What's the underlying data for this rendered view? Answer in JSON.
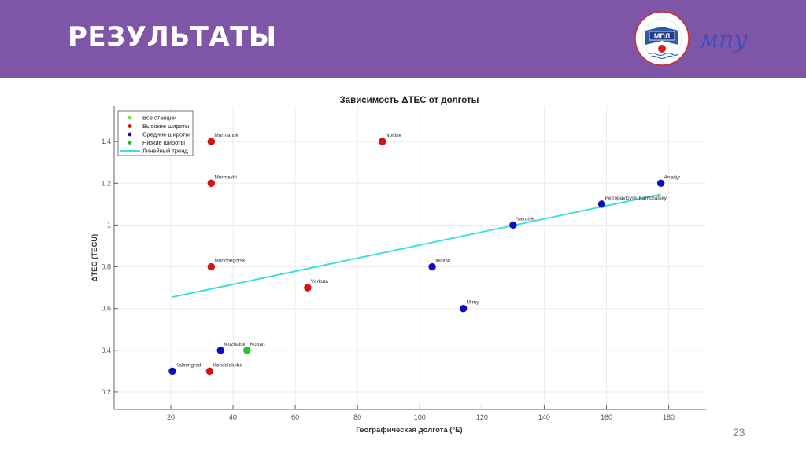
{
  "slide": {
    "title": "РЕЗУЛЬТАТЫ",
    "page_number": "23",
    "header_color": "#7f55a8",
    "logos": [
      {
        "name": "mpl-logo",
        "text": "МПЛ",
        "ring_text": "МУРМАНСКИЙ ПОЛИТЕХНИЧЕСКИЙ ЛИЦЕЙ"
      },
      {
        "name": "mpu-logo",
        "text": "мпу"
      }
    ]
  },
  "chart_data": {
    "type": "scatter",
    "title": "Зависимость ΔTEC от долготы",
    "xlabel": "Географическая долгота (°E)",
    "ylabel": "ΔTEC (TECU)",
    "xlim": [
      1.8,
      192
    ],
    "ylim": [
      0.117,
      1.57
    ],
    "xticks": [
      20,
      40,
      60,
      80,
      100,
      120,
      140,
      160,
      180
    ],
    "yticks": [
      0.2,
      0.4,
      0.6,
      0.8,
      1,
      1.2,
      1.4
    ],
    "ytick_labels": [
      "0.2",
      "0.4",
      "0.6",
      "0.8",
      "1",
      "1.2",
      "1.4"
    ],
    "grid": true,
    "legend_position": "top-left",
    "legend": [
      {
        "label": "Все станции",
        "kind": "marker",
        "color": "#7ed957"
      },
      {
        "label": "Высокие широты",
        "kind": "marker",
        "color": "#cc1111"
      },
      {
        "label": "Средние широты",
        "kind": "marker",
        "color": "#0a0aa8"
      },
      {
        "label": "Низкие широты",
        "kind": "marker",
        "color": "#22bb22"
      },
      {
        "label": "Линейный тренд",
        "kind": "line",
        "color": "#3ee0dc"
      }
    ],
    "series": [
      {
        "name": "Высокие широты",
        "color": "#dd1111",
        "points": [
          {
            "label": "Murmansk",
            "x": 33,
            "y": 1.4
          },
          {
            "label": "Norilsk",
            "x": 88,
            "y": 1.4
          },
          {
            "label": "Murmashi",
            "x": 33,
            "y": 1.2
          },
          {
            "label": "Monchegorsk",
            "x": 33,
            "y": 0.8
          },
          {
            "label": "Vorkuta",
            "x": 64,
            "y": 0.7
          },
          {
            "label": "Kandalaksha",
            "x": 32.5,
            "y": 0.3
          }
        ]
      },
      {
        "name": "Средние широты",
        "color": "#0a0ac8",
        "points": [
          {
            "label": "Anadyr",
            "x": 177.5,
            "y": 1.2
          },
          {
            "label": "Petropavlovsk-Kamchatsky",
            "x": 158.5,
            "y": 1.1
          },
          {
            "label": "Yakutsk",
            "x": 130,
            "y": 1.0
          },
          {
            "label": "Irkutsk",
            "x": 104,
            "y": 0.8
          },
          {
            "label": "Mirny",
            "x": 114,
            "y": 0.6
          },
          {
            "label": "Mozhaisk",
            "x": 36,
            "y": 0.4
          },
          {
            "label": "Kaliningrad",
            "x": 20.5,
            "y": 0.3
          }
        ]
      },
      {
        "name": "Низкие широты",
        "color": "#22cc22",
        "points": [
          {
            "label": "Koban",
            "x": 44.5,
            "y": 0.4
          }
        ]
      }
    ],
    "trend": {
      "name": "Линейный тренд",
      "color": "#3ee0dc",
      "x": [
        20.5,
        177.5
      ],
      "y": [
        0.655,
        1.147
      ]
    }
  }
}
